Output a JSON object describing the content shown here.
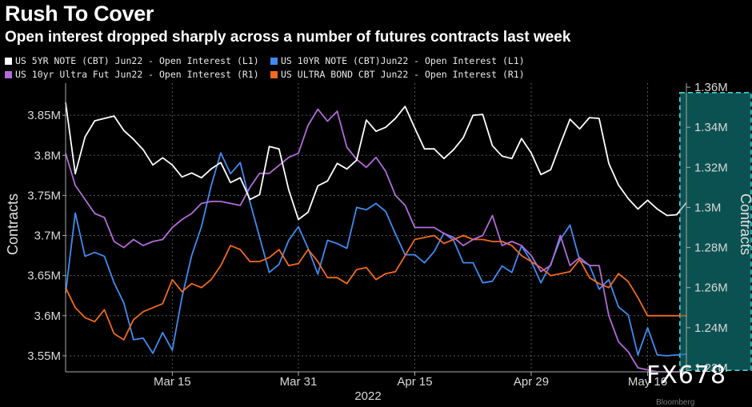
{
  "title": "Rush To Cover",
  "subtitle": "Open interest dropped sharply across a number of futures contracts last week",
  "watermark": "FX678",
  "source_text": "Bloomberg",
  "chart_data": {
    "type": "line",
    "x_label": "2022",
    "x_ticks": [
      "Mar 15",
      "Mar 31",
      "Apr 15",
      "Apr 29",
      "May 16"
    ],
    "left_axis": {
      "label": "Contracts",
      "range": [
        3.53,
        3.89
      ],
      "ticks": [
        "3.55M",
        "3.6M",
        "3.65M",
        "3.7M",
        "3.75M",
        "3.8M",
        "3.85M"
      ],
      "tick_values": [
        3.55,
        3.6,
        3.65,
        3.7,
        3.75,
        3.8,
        3.85
      ]
    },
    "right_axis": {
      "label": "Contracts",
      "range": [
        1.218,
        1.362
      ],
      "ticks": [
        "1.22M",
        "1.24M",
        "1.26M",
        "1.28M",
        "1.3M",
        "1.32M",
        "1.34M",
        "1.36M"
      ],
      "tick_values": [
        1.22,
        1.24,
        1.26,
        1.28,
        1.3,
        1.32,
        1.34,
        1.36
      ]
    },
    "highlight": {
      "x_range": [
        64,
        70
      ],
      "color": "#0e5a5a",
      "border": "#3fd0d0"
    },
    "grid": true,
    "legend_position": "top-left",
    "series": [
      {
        "name": "US 5YR NOTE (CBT) Jun22 - Open Interest (L1)",
        "axis": "left",
        "color": "#ffffff",
        "values": [
          3.866,
          3.777,
          3.823,
          3.843,
          3.846,
          3.849,
          3.831,
          3.82,
          3.807,
          3.788,
          3.797,
          3.788,
          3.773,
          3.778,
          3.772,
          3.783,
          3.791,
          3.766,
          3.772,
          3.745,
          3.751,
          3.811,
          3.808,
          3.757,
          3.72,
          3.729,
          3.762,
          3.768,
          3.79,
          3.783,
          3.794,
          3.844,
          3.83,
          3.835,
          3.846,
          3.861,
          3.834,
          3.808,
          3.808,
          3.796,
          3.807,
          3.822,
          3.85,
          3.851,
          3.812,
          3.799,
          3.796,
          3.821,
          3.803,
          3.776,
          3.782,
          3.814,
          3.845,
          3.833,
          3.847,
          3.846,
          3.79,
          3.763,
          3.746,
          3.733,
          3.744,
          3.733,
          3.725,
          3.726,
          3.741
        ]
      },
      {
        "name": "US 10YR NOTE (CBT)Jun22 - Open Interest (L1)",
        "axis": "left",
        "color": "#3f8cf0",
        "values": [
          3.628,
          3.728,
          3.674,
          3.679,
          3.674,
          3.641,
          3.616,
          3.57,
          3.572,
          3.553,
          3.579,
          3.557,
          3.623,
          3.675,
          3.711,
          3.762,
          3.803,
          3.777,
          3.791,
          3.742,
          3.698,
          3.654,
          3.664,
          3.694,
          3.711,
          3.684,
          3.652,
          3.694,
          3.69,
          3.684,
          3.735,
          3.732,
          3.74,
          3.73,
          3.702,
          3.676,
          3.676,
          3.666,
          3.68,
          3.703,
          3.694,
          3.666,
          3.666,
          3.641,
          3.643,
          3.662,
          3.654,
          3.687,
          3.668,
          3.641,
          3.664,
          3.695,
          3.713,
          3.669,
          3.663,
          3.633,
          3.645,
          3.611,
          3.601,
          3.551,
          3.585,
          3.551,
          3.55,
          3.551,
          3.552
        ]
      },
      {
        "name": "US 10yr Ultra Fut Jun22 - Open Interest (R1)",
        "axis": "right",
        "color": "#b36bd9",
        "values": [
          1.327,
          1.311,
          1.304,
          1.297,
          1.295,
          1.283,
          1.28,
          1.284,
          1.281,
          1.283,
          1.284,
          1.29,
          1.294,
          1.297,
          1.302,
          1.303,
          1.303,
          1.302,
          1.301,
          1.31,
          1.317,
          1.317,
          1.321,
          1.325,
          1.327,
          1.341,
          1.349,
          1.343,
          1.348,
          1.33,
          1.324,
          1.32,
          1.325,
          1.318,
          1.306,
          1.301,
          1.29,
          1.29,
          1.29,
          1.287,
          1.285,
          1.281,
          1.284,
          1.286,
          1.296,
          1.281,
          1.283,
          1.281,
          1.276,
          1.268,
          1.271,
          1.286,
          1.271,
          1.275,
          1.271,
          1.271,
          1.246,
          1.233,
          1.228,
          1.22,
          1.219,
          1.218,
          1.218,
          1.218,
          1.218
        ]
      },
      {
        "name": "US ULTRA BOND CBT Jun22 - Open Interest (R1)",
        "axis": "right",
        "color": "#f26a1b",
        "values": [
          1.26,
          1.25,
          1.245,
          1.243,
          1.249,
          1.237,
          1.234,
          1.244,
          1.248,
          1.25,
          1.252,
          1.264,
          1.258,
          1.262,
          1.26,
          1.264,
          1.271,
          1.281,
          1.279,
          1.273,
          1.273,
          1.275,
          1.279,
          1.271,
          1.272,
          1.279,
          1.273,
          1.265,
          1.265,
          1.262,
          1.269,
          1.27,
          1.264,
          1.267,
          1.268,
          1.276,
          1.284,
          1.285,
          1.286,
          1.282,
          1.284,
          1.286,
          1.284,
          1.284,
          1.283,
          1.283,
          1.281,
          1.276,
          1.273,
          1.27,
          1.266,
          1.267,
          1.268,
          1.274,
          1.265,
          1.262,
          1.26,
          1.267,
          1.263,
          1.255,
          1.246,
          1.246,
          1.246,
          1.246,
          1.246
        ]
      }
    ]
  }
}
